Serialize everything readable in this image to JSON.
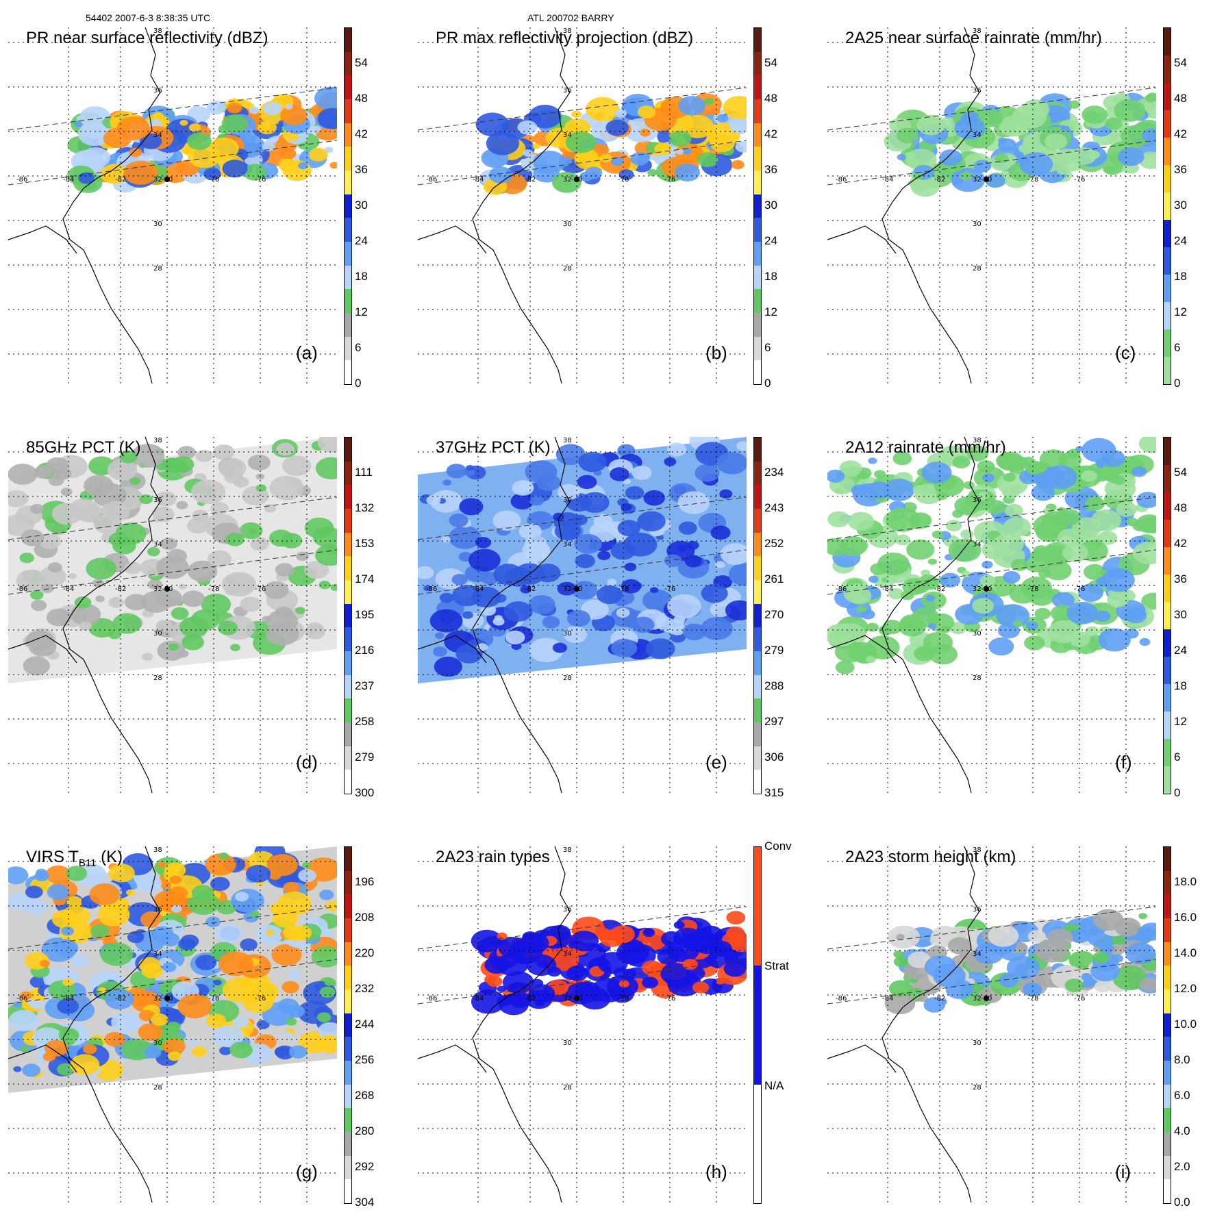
{
  "header": {
    "left": "54402 2007-6-3 8:38:35 UTC",
    "center": "ATL 200702 BARRY"
  },
  "map_labels": {
    "lats": [
      "38",
      "36",
      "34",
      "32",
      "30",
      "28"
    ],
    "lons": [
      "-86",
      "-84",
      "-82",
      "-80",
      "-78",
      "-76"
    ]
  },
  "panels": [
    {
      "title": "PR near surface reflectivity (dBZ)",
      "label": "(a)",
      "field": "swath",
      "colors": [
        "#5a1a10",
        "#8b2310",
        "#c01515",
        "#e23a14",
        "#ff8c1a",
        "#ffcf1a",
        "#ffef50",
        "#1020d0",
        "#2f5ae0",
        "#5e9ef5",
        "#b8d4fa",
        "#60c860",
        "#a8a8a8",
        "#d8d8d8",
        "#ffffff"
      ],
      "ticks": [
        "54",
        "48",
        "42",
        "36",
        "30",
        "24",
        "18",
        "12",
        "6",
        "0"
      ]
    },
    {
      "title": "PR max reflectivity projection (dBZ)",
      "label": "(b)",
      "field": "swath",
      "colors": [
        "#5a1a10",
        "#8b2310",
        "#c01515",
        "#e23a14",
        "#ff8c1a",
        "#ffcf1a",
        "#ffef50",
        "#1020d0",
        "#2f5ae0",
        "#5e9ef5",
        "#b8d4fa",
        "#60c860",
        "#a8a8a8",
        "#d8d8d8",
        "#ffffff"
      ],
      "ticks": [
        "54",
        "48",
        "42",
        "36",
        "30",
        "24",
        "18",
        "12",
        "6",
        "0"
      ]
    },
    {
      "title": "2A25 near surface rainrate (mm/hr)",
      "label": "(c)",
      "field": "swath",
      "colors": [
        "#5a1a10",
        "#8b2310",
        "#c01515",
        "#e23a14",
        "#ff8c1a",
        "#ffcf1a",
        "#ffef50",
        "#1020d0",
        "#2f5ae0",
        "#5e9ef5",
        "#b8d4fa",
        "#70d070",
        "#9fe09f"
      ],
      "ticks": [
        "54",
        "48",
        "42",
        "36",
        "30",
        "24",
        "18",
        "12",
        "6",
        "0"
      ]
    },
    {
      "title": "85GHz PCT (K)",
      "label": "(d)",
      "field": "wide-gray",
      "colors": [
        "#5a1a10",
        "#8b2310",
        "#c01515",
        "#e23a14",
        "#ff8c1a",
        "#ffcf1a",
        "#ffef50",
        "#1020d0",
        "#2f5ae0",
        "#5e9ef5",
        "#b8d4fa",
        "#60c860",
        "#a8a8a8",
        "#d8d8d8",
        "#ffffff"
      ],
      "ticks": [
        "111",
        "132",
        "153",
        "174",
        "195",
        "216",
        "237",
        "258",
        "279",
        "300"
      ]
    },
    {
      "title": "37GHz PCT (K)",
      "label": "(e)",
      "field": "wide-blue",
      "colors": [
        "#5a1a10",
        "#8b2310",
        "#c01515",
        "#e23a14",
        "#ff8c1a",
        "#ffcf1a",
        "#ffef50",
        "#1020d0",
        "#2f5ae0",
        "#5e9ef5",
        "#b8d4fa",
        "#60c860",
        "#a8a8a8",
        "#d8d8d8",
        "#ffffff"
      ],
      "ticks": [
        "234",
        "243",
        "252",
        "261",
        "270",
        "279",
        "288",
        "297",
        "306",
        "315"
      ]
    },
    {
      "title": "2A12 rainrate (mm/hr)",
      "label": "(f)",
      "field": "wide-green",
      "colors": [
        "#5a1a10",
        "#8b2310",
        "#c01515",
        "#e23a14",
        "#ff8c1a",
        "#ffcf1a",
        "#ffef50",
        "#1020d0",
        "#2f5ae0",
        "#5e9ef5",
        "#b8d4fa",
        "#70d070",
        "#9fe09f"
      ],
      "ticks": [
        "54",
        "48",
        "42",
        "36",
        "30",
        "24",
        "18",
        "12",
        "6",
        "0"
      ]
    },
    {
      "title": "VIRS T",
      "title_sub": "B11",
      "title_tail": " (K)",
      "label": "(g)",
      "field": "wide-virs",
      "colors": [
        "#5a1a10",
        "#8b2310",
        "#c01515",
        "#e23a14",
        "#ff8c1a",
        "#ffcf1a",
        "#ffef50",
        "#1020d0",
        "#2f5ae0",
        "#5e9ef5",
        "#b8d4fa",
        "#60c860",
        "#a8a8a8",
        "#d8d8d8",
        "#ffffff"
      ],
      "ticks": [
        "196",
        "208",
        "220",
        "232",
        "244",
        "256",
        "268",
        "280",
        "292",
        "304"
      ]
    },
    {
      "title": "2A23 rain types",
      "label": "(h)",
      "field": "swath-types",
      "colors": [
        "#ff4a1a",
        "#1414e6",
        "#ffffff"
      ],
      "ticks": [
        "Conv",
        "Strat",
        "N/A"
      ]
    },
    {
      "title": "2A23 storm height (km)",
      "label": "(i)",
      "field": "swath-height",
      "colors": [
        "#5a1a10",
        "#8b2310",
        "#c01515",
        "#e23a14",
        "#ff8c1a",
        "#ffcf1a",
        "#ffef50",
        "#1020d0",
        "#2f5ae0",
        "#5e9ef5",
        "#b8d4fa",
        "#60c860",
        "#a8a8a8",
        "#d8d8d8",
        "#ffffff"
      ],
      "ticks": [
        "18.0",
        "16.0",
        "14.0",
        "12.0",
        "10.0",
        "8.0",
        "6.0",
        "4.0",
        "2.0",
        "0.0"
      ]
    }
  ]
}
